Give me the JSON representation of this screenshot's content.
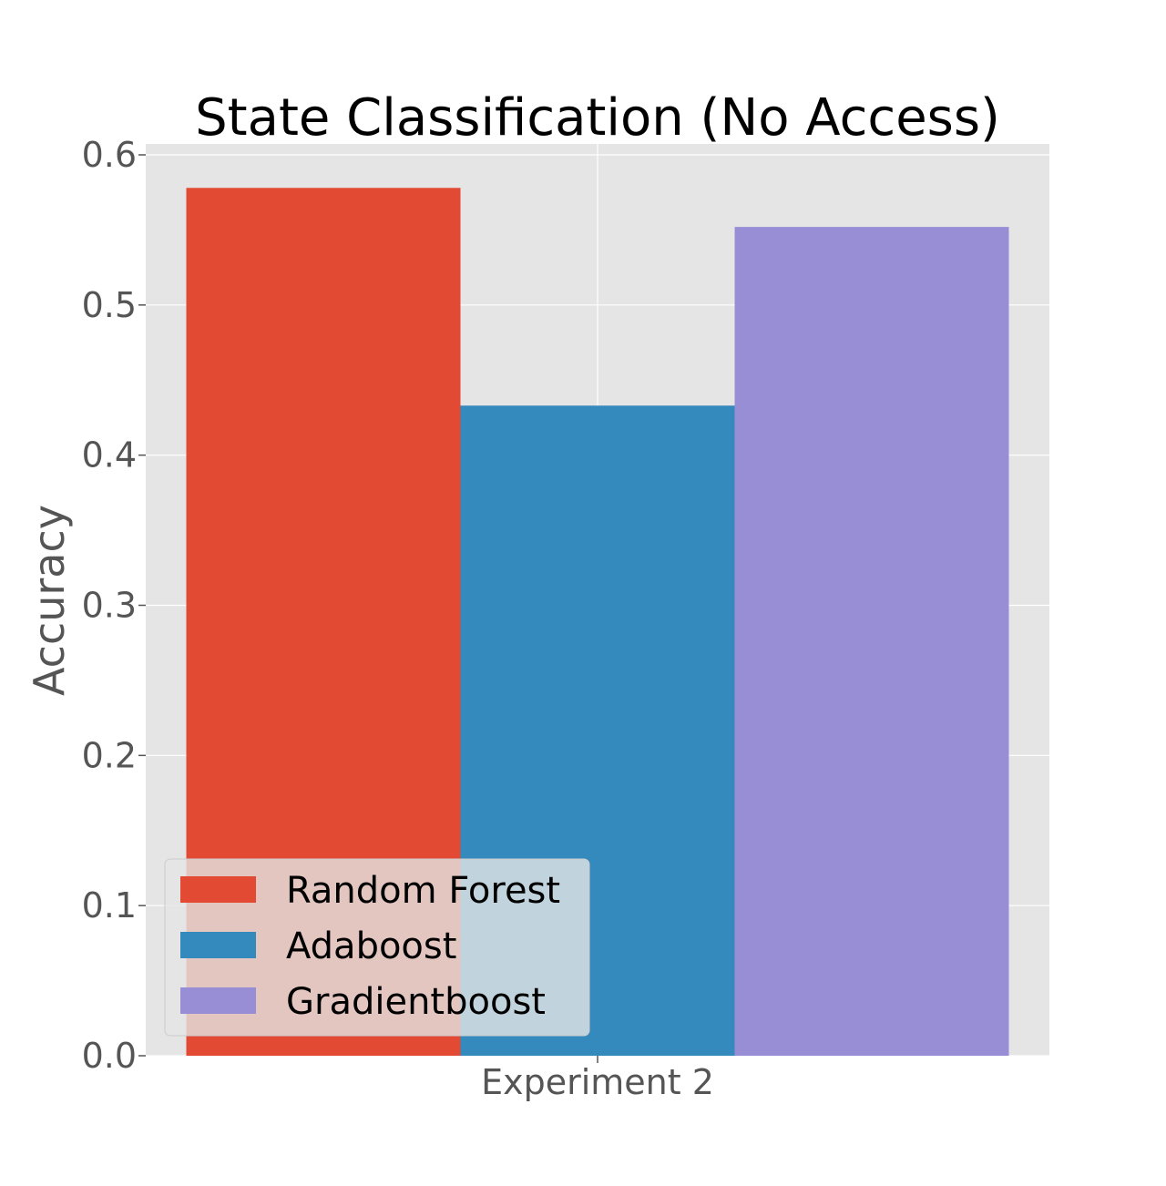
{
  "chart_data": {
    "type": "bar",
    "title": "State Classification (No Access)",
    "xlabel": "",
    "ylabel": "Accuracy",
    "categories": [
      "Experiment 2"
    ],
    "series": [
      {
        "name": "Random Forest",
        "values": [
          0.578
        ],
        "color": "#E24A33"
      },
      {
        "name": "Adaboost",
        "values": [
          0.433
        ],
        "color": "#348ABD"
      },
      {
        "name": "Gradientboost",
        "values": [
          0.552
        ],
        "color": "#988ED5"
      }
    ],
    "ylim": [
      0,
      0.6
    ],
    "yticks": [
      "0.0",
      "0.1",
      "0.2",
      "0.3",
      "0.4",
      "0.5",
      "0.6"
    ],
    "grid": true,
    "legend": "lower-left",
    "plot_background": "#E5E5E5"
  }
}
